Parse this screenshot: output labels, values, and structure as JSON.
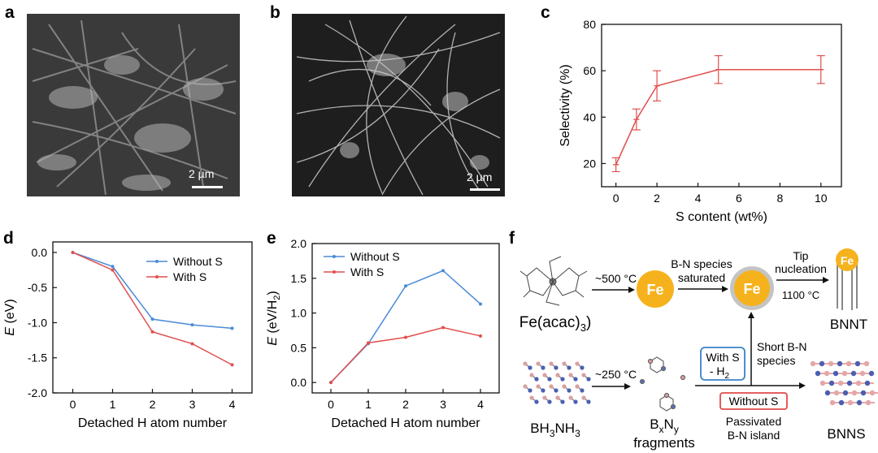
{
  "panels": {
    "a": {
      "label": "a",
      "scale_bar": "2 µm"
    },
    "b": {
      "label": "b",
      "scale_bar": "2 µm"
    },
    "c": {
      "label": "c"
    },
    "d": {
      "label": "d"
    },
    "e": {
      "label": "e"
    },
    "f": {
      "label": "f"
    }
  },
  "chart_data": [
    {
      "panel": "c",
      "type": "line",
      "xlabel": "S content (wt%)",
      "ylabel": "Selectivity (%)",
      "xlim": [
        -0.7,
        11
      ],
      "ylim": [
        10,
        80
      ],
      "xticks": [
        0,
        2,
        4,
        6,
        8,
        10
      ],
      "yticks": [
        20,
        40,
        60,
        80
      ],
      "grid": false,
      "color": "#e0504e",
      "series": [
        {
          "x": [
            0,
            1,
            2,
            5,
            10
          ],
          "values": [
            19.5,
            39,
            53.5,
            60.5,
            60.5
          ],
          "errors": [
            3,
            4.5,
            6.5,
            6,
            6
          ]
        }
      ]
    },
    {
      "panel": "d",
      "type": "line",
      "xlabel": "Detached H atom number",
      "ylabel_italic": "E",
      "ylabel_rest": " (eV)",
      "xlim": [
        -0.5,
        4.5
      ],
      "ylim": [
        -2.0,
        0.15
      ],
      "xticks": [
        0,
        1,
        2,
        3,
        4
      ],
      "yticks": [
        0.0,
        -0.5,
        -1.0,
        -1.5,
        -2.0
      ],
      "ytick_labels": [
        "0.0",
        "-0.5",
        "-1.0",
        "-1.5",
        "-2.0"
      ],
      "legend_position": "top-right",
      "series": [
        {
          "name": "Without S",
          "color": "#4a8ad8",
          "x": [
            0,
            1,
            2,
            3,
            4
          ],
          "values": [
            0.0,
            -0.2,
            -0.95,
            -1.03,
            -1.08
          ]
        },
        {
          "name": "With S",
          "color": "#e0504e",
          "x": [
            0,
            1,
            2,
            3,
            4
          ],
          "values": [
            0.0,
            -0.25,
            -1.13,
            -1.3,
            -1.6
          ]
        }
      ]
    },
    {
      "panel": "e",
      "type": "line",
      "xlabel": "Detached H atom number",
      "ylabel_italic": "E",
      "ylabel_rest": " (eV/H",
      "ylabel_sub": "2",
      "ylabel_end": ")",
      "xlim": [
        -0.5,
        4.5
      ],
      "ylim": [
        -0.15,
        2.0
      ],
      "xticks": [
        0,
        1,
        2,
        3,
        4
      ],
      "yticks": [
        0.0,
        0.5,
        1.0,
        1.5,
        2.0
      ],
      "ytick_labels": [
        "0.0",
        "0.5",
        "1.0",
        "1.5",
        "2.0"
      ],
      "legend_position": "top-left",
      "series": [
        {
          "name": "Without S",
          "color": "#4a8ad8",
          "x": [
            0,
            1,
            2,
            3,
            4
          ],
          "values": [
            0.0,
            0.56,
            1.39,
            1.61,
            1.13
          ]
        },
        {
          "name": "With S",
          "color": "#e0504e",
          "x": [
            0,
            1,
            2,
            3,
            4
          ],
          "values": [
            0.0,
            0.57,
            0.65,
            0.79,
            0.67
          ]
        }
      ]
    }
  ],
  "schematic": {
    "fe_label": "Fe",
    "precursor_fe_main": "Fe(acac)",
    "precursor_fe_sub": "3",
    "precursor_bn_1": "BH",
    "precursor_bn_sub1": "3",
    "precursor_bn_2": "NH",
    "precursor_bn_sub2": "3",
    "temp_500": "~500 °C",
    "temp_250": "~250 °C",
    "saturated_1": "B-N species",
    "saturated_2": "saturated",
    "tip_1": "Tip",
    "tip_2": "nucleation",
    "temp_1100": "1100 °C",
    "bnnt": "BNNT",
    "with_s_1": "With S",
    "with_s_2": "- H",
    "with_s_sub": "2",
    "short_1": "Short B-N",
    "short_2": "species",
    "without_s": "Without S",
    "passivated_1": "Passivated",
    "passivated_2": "B-N island",
    "bxny_b": "B",
    "bxny_x": "x",
    "bxny_n": "N",
    "bxny_y": "y",
    "fragments": "fragments",
    "bnns": "BNNS"
  }
}
